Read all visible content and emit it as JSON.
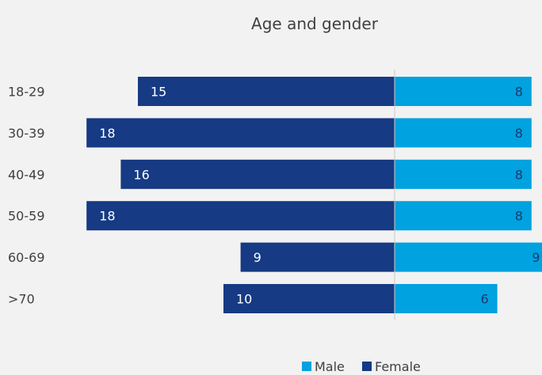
{
  "chart_data": {
    "type": "bar",
    "orientation": "horizontal",
    "subtype": "population-pyramid",
    "title": "Age and gender",
    "categories": [
      "18-29",
      "30-39",
      "40-49",
      "50-59",
      "60-69",
      ">70"
    ],
    "series": [
      {
        "name": "Male",
        "values": [
          8,
          8,
          8,
          8,
          9,
          6
        ],
        "color": "#00a2e0"
      },
      {
        "name": "Female",
        "values": [
          15,
          18,
          16,
          18,
          9,
          10
        ],
        "color": "#163a83"
      }
    ],
    "legend_position": "bottom-right",
    "grid": false,
    "data_labels": true
  }
}
